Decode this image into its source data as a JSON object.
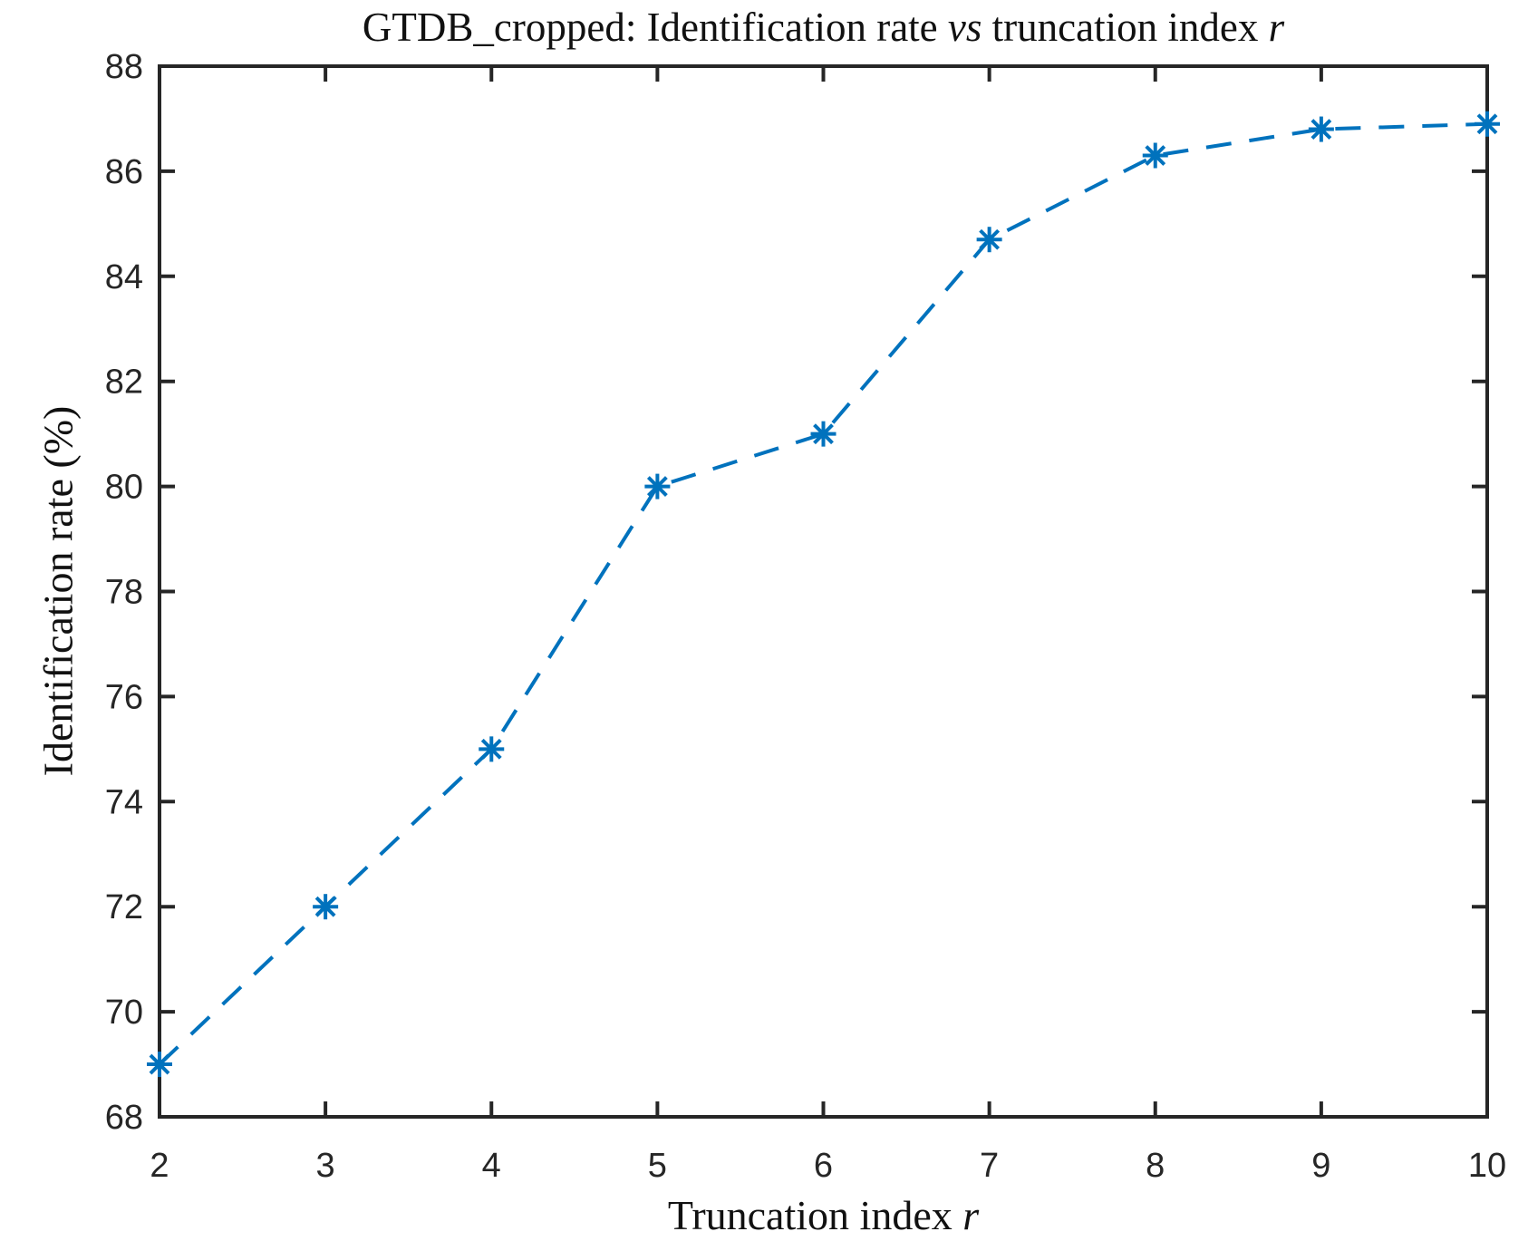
{
  "title": {
    "part1": "GTDB_cropped: Identification rate ",
    "vs": "vs",
    "part2": " truncation index ",
    "var": "r"
  },
  "x_axis_label": {
    "text": "Truncation index ",
    "var": "r"
  },
  "y_axis_label": "Identification rate (%)",
  "colors": {
    "line": "#0072BD",
    "axis": "#262626",
    "tick_text": "#262626",
    "background": "#ffffff"
  },
  "chart_data": {
    "type": "line",
    "title": "GTDB_cropped: Identification rate vs truncation index r",
    "xlabel": "Truncation index r",
    "ylabel": "Identification rate (%)",
    "x": [
      2,
      3,
      4,
      5,
      6,
      7,
      8,
      9,
      10
    ],
    "y": [
      69,
      72,
      75,
      80,
      81,
      84.7,
      86.3,
      86.8,
      86.9
    ],
    "series": [
      {
        "name": "Identification rate",
        "values": [
          69,
          72,
          75,
          80,
          81,
          84.7,
          86.3,
          86.8,
          86.9
        ]
      }
    ],
    "xlim": [
      2,
      10
    ],
    "ylim": [
      68,
      88
    ],
    "x_ticks": [
      2,
      3,
      4,
      5,
      6,
      7,
      8,
      9,
      10
    ],
    "y_ticks": [
      68,
      70,
      72,
      74,
      76,
      78,
      80,
      82,
      84,
      86,
      88
    ],
    "line_style": "dashed",
    "marker": "asterisk",
    "grid": false,
    "legend": null
  }
}
